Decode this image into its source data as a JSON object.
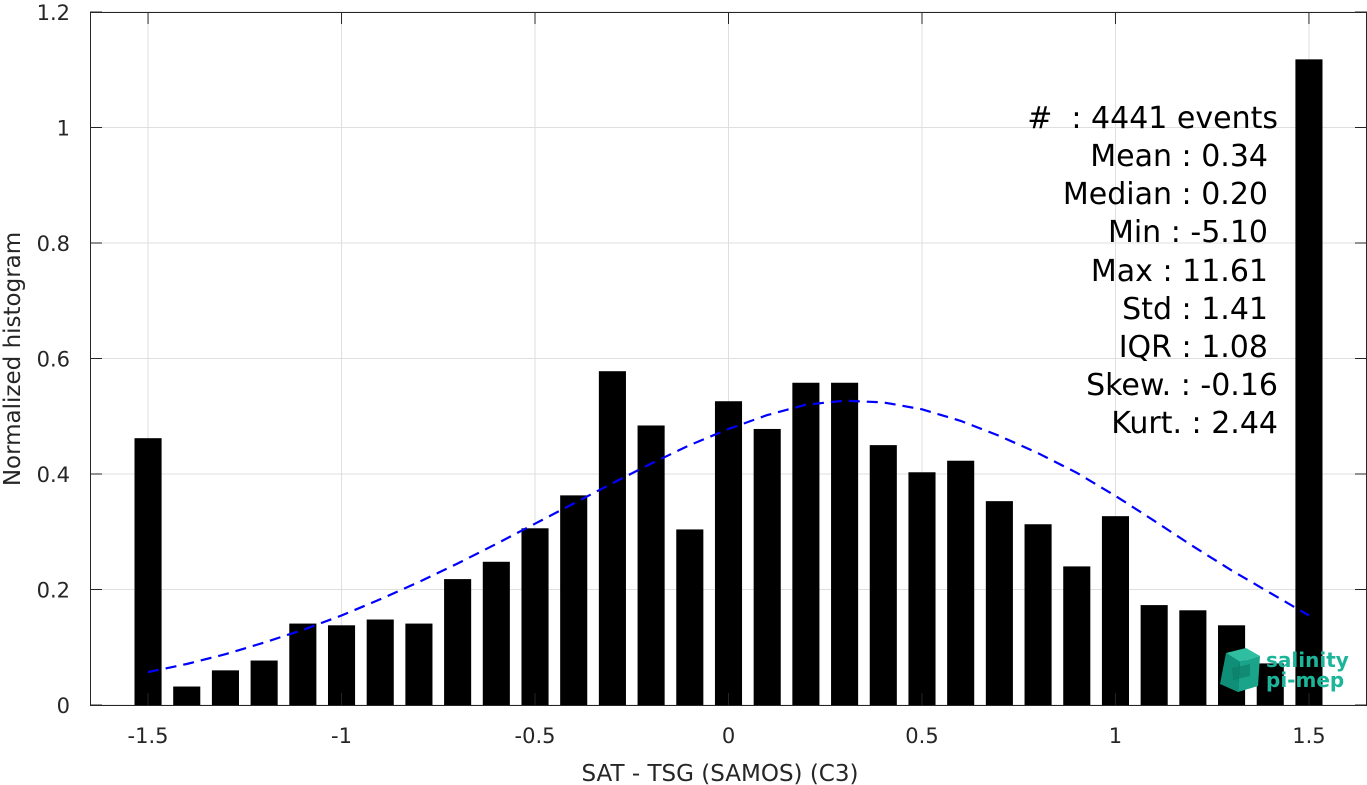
{
  "chart_data": {
    "type": "bar",
    "xlabel": "SAT - TSG (SAMOS) (C3)",
    "ylabel": "Normalized histogram",
    "xlim": [
      -1.65,
      1.65
    ],
    "ylim": [
      0,
      1.2
    ],
    "xticks": [
      -1.5,
      -1,
      -0.5,
      0,
      0.5,
      1,
      1.5
    ],
    "xtick_labels": [
      "-1.5",
      "-1",
      "-0.5",
      "0",
      "0.5",
      "1",
      "1.5"
    ],
    "yticks": [
      0,
      0.2,
      0.4,
      0.6,
      0.8,
      1,
      1.2
    ],
    "ytick_labels": [
      "0",
      "0.2",
      "0.4",
      "0.6",
      "0.8",
      "1",
      "1.2"
    ],
    "grid": true,
    "bar_color": "#000000",
    "bars": {
      "x": [
        -1.5,
        -1.4,
        -1.3,
        -1.2,
        -1.1,
        -1.0,
        -0.9,
        -0.8,
        -0.7,
        -0.6,
        -0.5,
        -0.4,
        -0.3,
        -0.2,
        -0.1,
        0.0,
        0.1,
        0.2,
        0.3,
        0.4,
        0.5,
        0.6,
        0.7,
        0.8,
        0.9,
        1.0,
        1.1,
        1.2,
        1.3,
        1.4,
        1.5
      ],
      "values": [
        0.462,
        0.032,
        0.06,
        0.077,
        0.141,
        0.138,
        0.148,
        0.141,
        0.218,
        0.248,
        0.306,
        0.363,
        0.578,
        0.484,
        0.304,
        0.526,
        0.478,
        0.558,
        0.558,
        0.45,
        0.403,
        0.423,
        0.353,
        0.313,
        0.24,
        0.327,
        0.173,
        0.164,
        0.138,
        0.072,
        1.118
      ]
    },
    "fit_curve": {
      "style": "dashed",
      "color": "#0000ff",
      "x": [
        -1.5,
        -1.4,
        -1.3,
        -1.2,
        -1.1,
        -1.0,
        -0.9,
        -0.8,
        -0.7,
        -0.6,
        -0.5,
        -0.4,
        -0.3,
        -0.2,
        -0.1,
        0.0,
        0.1,
        0.2,
        0.3,
        0.4,
        0.5,
        0.6,
        0.7,
        0.8,
        0.9,
        1.0,
        1.1,
        1.2,
        1.3,
        1.4,
        1.5
      ],
      "y": [
        0.057,
        0.071,
        0.088,
        0.108,
        0.13,
        0.155,
        0.183,
        0.213,
        0.245,
        0.279,
        0.314,
        0.349,
        0.384,
        0.418,
        0.45,
        0.478,
        0.502,
        0.52,
        0.527,
        0.524,
        0.512,
        0.492,
        0.466,
        0.436,
        0.402,
        0.362,
        0.319,
        0.275,
        0.233,
        0.194,
        0.155
      ]
    },
    "annotations": {
      "lines": [
        "#  : 4441 events",
        "Mean : 0.34",
        "Median : 0.20",
        "Min : -5.10",
        "Max : 11.61",
        "Std : 1.41",
        "IQR : 1.08",
        "Skew. : -0.16",
        "Kurt. : 2.44"
      ]
    }
  },
  "logo": {
    "line1": "salinity",
    "line2": "pi-mep"
  }
}
